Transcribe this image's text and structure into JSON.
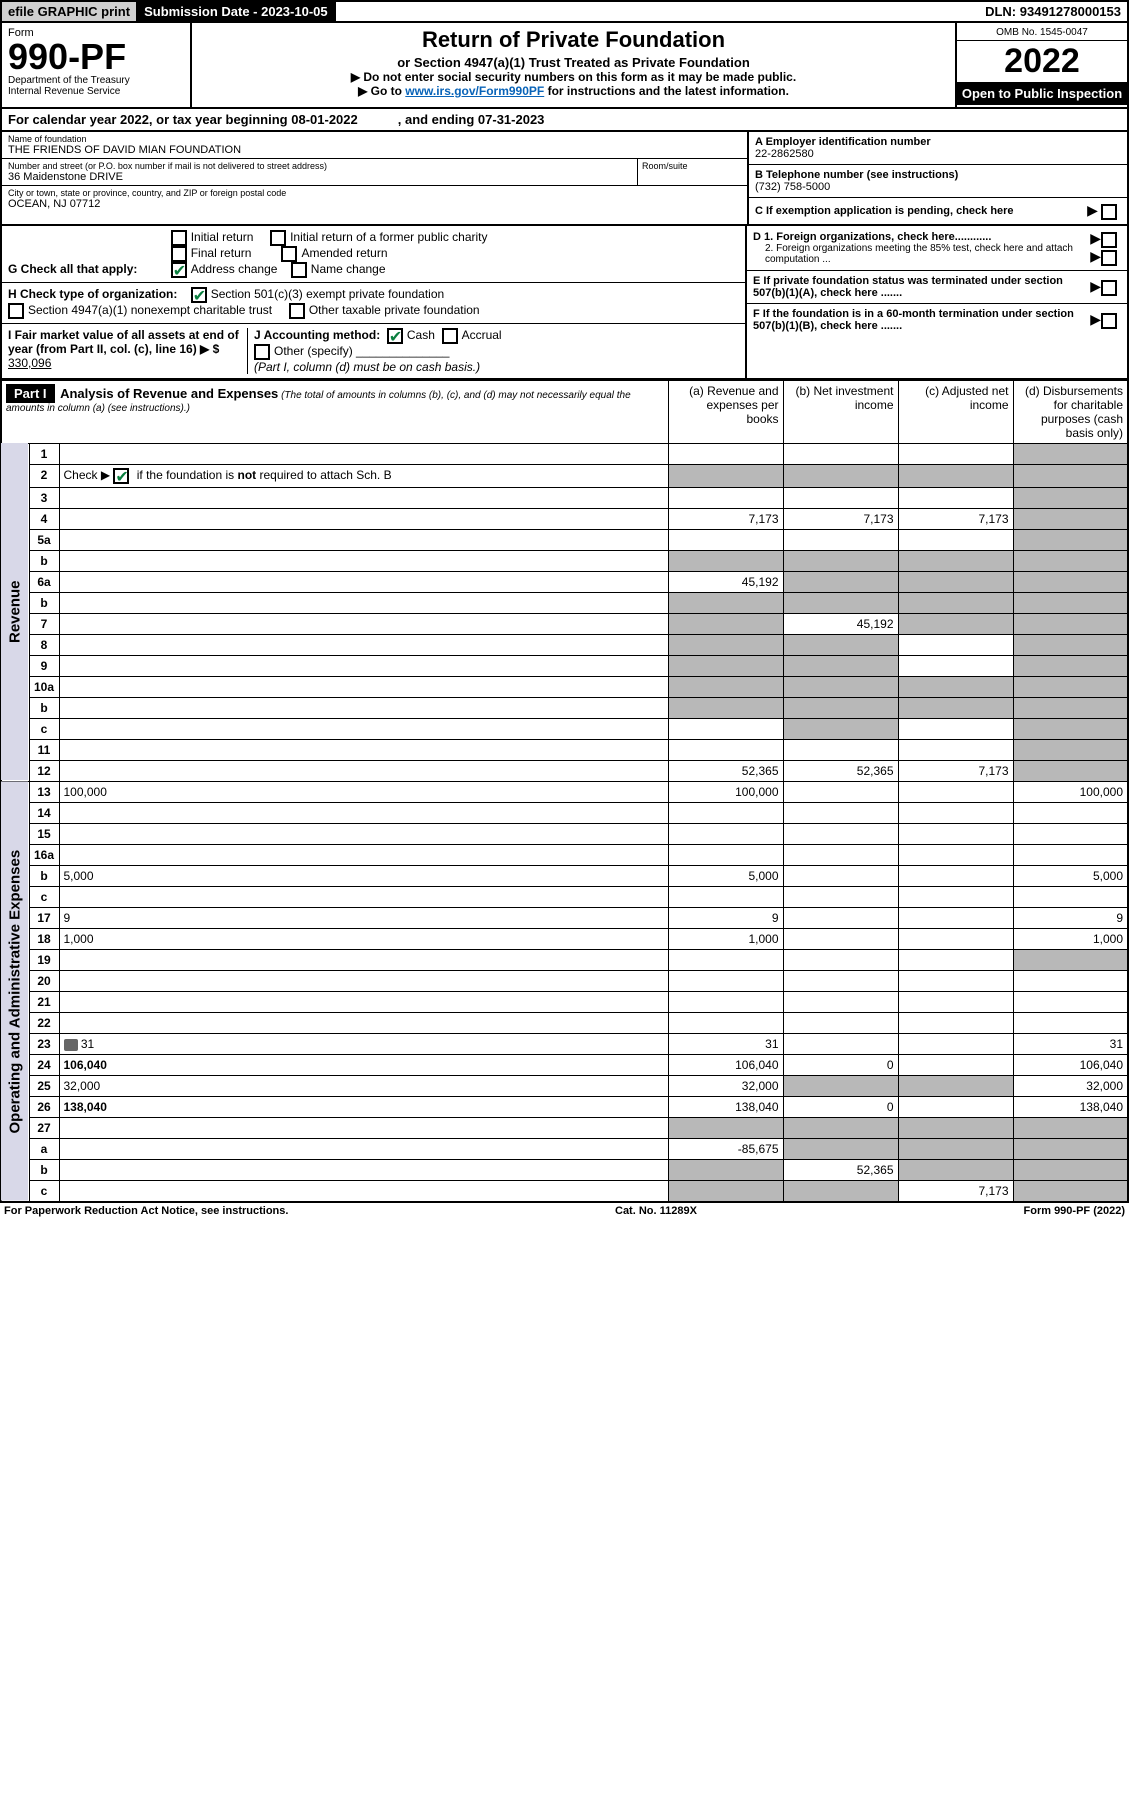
{
  "topbar": {
    "efile": "efile GRAPHIC print",
    "submission_label": "Submission Date - ",
    "submission_date": "2023-10-05",
    "dln_label": "DLN: ",
    "dln": "93491278000153"
  },
  "header": {
    "form_word": "Form",
    "form_num": "990-PF",
    "dept1": "Department of the Treasury",
    "dept2": "Internal Revenue Service",
    "title": "Return of Private Foundation",
    "subtitle1": "or Section 4947(a)(1) Trust Treated as Private Foundation",
    "subtitle2": "▶ Do not enter social security numbers on this form as it may be made public.",
    "subtitle3_pre": "▶ Go to ",
    "subtitle3_link": "www.irs.gov/Form990PF",
    "subtitle3_post": " for instructions and the latest information.",
    "omb": "OMB No. 1545-0047",
    "year": "2022",
    "open": "Open to Public Inspection"
  },
  "yearline": {
    "text1": "For calendar year 2022, or tax year beginning ",
    "begin": "08-01-2022",
    "text2": ", and ending ",
    "end": "07-31-2023"
  },
  "entity": {
    "name_label": "Name of foundation",
    "name": "THE FRIENDS OF DAVID MIAN FOUNDATION",
    "addr_label": "Number and street (or P.O. box number if mail is not delivered to street address)",
    "addr": "36 Maidenstone DRIVE",
    "room_label": "Room/suite",
    "room": "",
    "city_label": "City or town, state or province, country, and ZIP or foreign postal code",
    "city": "OCEAN, NJ  07712",
    "ein_label": "A Employer identification number",
    "ein": "22-2862580",
    "phone_label": "B Telephone number (see instructions)",
    "phone": "(732) 758-5000",
    "c_label": "C If exemption application is pending, check here"
  },
  "checks": {
    "g_label": "G Check all that apply:",
    "g_opts": [
      "Initial return",
      "Initial return of a former public charity",
      "Final return",
      "Amended return",
      "Address change",
      "Name change"
    ],
    "h_label": "H Check type of organization:",
    "h_opt1": "Section 501(c)(3) exempt private foundation",
    "h_opt2": "Section 4947(a)(1) nonexempt charitable trust",
    "h_opt3": "Other taxable private foundation",
    "i_label": "I Fair market value of all assets at end of year (from Part II, col. (c), line 16) ▶ $",
    "i_val": "330,096",
    "j_label": "J Accounting method:",
    "j_cash": "Cash",
    "j_accrual": "Accrual",
    "j_other": "Other (specify)",
    "j_note": "(Part I, column (d) must be on cash basis.)",
    "d1": "D 1. Foreign organizations, check here............",
    "d2": "2. Foreign organizations meeting the 85% test, check here and attach computation ...",
    "e": "E  If private foundation status was terminated under section 507(b)(1)(A), check here .......",
    "f": "F  If the foundation is in a 60-month termination under section 507(b)(1)(B), check here ......."
  },
  "part1": {
    "label": "Part I",
    "title": "Analysis of Revenue and Expenses",
    "note": "(The total of amounts in columns (b), (c), and (d) may not necessarily equal the amounts in column (a) (see instructions).)",
    "cols": {
      "a": "(a) Revenue and expenses per books",
      "b": "(b) Net investment income",
      "c": "(c) Adjusted net income",
      "d": "(d) Disbursements for charitable purposes (cash basis only)"
    }
  },
  "section_labels": {
    "revenue": "Revenue",
    "opexp": "Operating and Administrative Expenses"
  },
  "rows": [
    {
      "n": "1",
      "d": "",
      "a": "",
      "b": "",
      "c": "",
      "shade": [
        "d"
      ]
    },
    {
      "n": "2",
      "d": "",
      "a": "",
      "b": "",
      "c": "",
      "shade": [
        "a",
        "b",
        "c",
        "d"
      ],
      "check": true
    },
    {
      "n": "3",
      "d": "",
      "a": "",
      "b": "",
      "c": "",
      "shade": [
        "d"
      ]
    },
    {
      "n": "4",
      "d": "",
      "a": "7,173",
      "b": "7,173",
      "c": "7,173",
      "shade": [
        "d"
      ]
    },
    {
      "n": "5a",
      "d": "",
      "a": "",
      "b": "",
      "c": "",
      "shade": [
        "d"
      ]
    },
    {
      "n": "b",
      "d": "",
      "a": "",
      "b": "",
      "c": "",
      "shade": [
        "a",
        "b",
        "c",
        "d"
      ]
    },
    {
      "n": "6a",
      "d": "",
      "a": "45,192",
      "b": "",
      "c": "",
      "shade": [
        "b",
        "c",
        "d"
      ]
    },
    {
      "n": "b",
      "d": "",
      "a": "",
      "b": "",
      "c": "",
      "shade": [
        "a",
        "b",
        "c",
        "d"
      ]
    },
    {
      "n": "7",
      "d": "",
      "a": "",
      "b": "45,192",
      "c": "",
      "shade": [
        "a",
        "c",
        "d"
      ]
    },
    {
      "n": "8",
      "d": "",
      "a": "",
      "b": "",
      "c": "",
      "shade": [
        "a",
        "b",
        "d"
      ]
    },
    {
      "n": "9",
      "d": "",
      "a": "",
      "b": "",
      "c": "",
      "shade": [
        "a",
        "b",
        "d"
      ]
    },
    {
      "n": "10a",
      "d": "",
      "a": "",
      "b": "",
      "c": "",
      "shade": [
        "a",
        "b",
        "c",
        "d"
      ]
    },
    {
      "n": "b",
      "d": "",
      "a": "",
      "b": "",
      "c": "",
      "shade": [
        "a",
        "b",
        "c",
        "d"
      ]
    },
    {
      "n": "c",
      "d": "",
      "a": "",
      "b": "",
      "c": "",
      "shade": [
        "b",
        "d"
      ]
    },
    {
      "n": "11",
      "d": "",
      "a": "",
      "b": "",
      "c": "",
      "shade": [
        "d"
      ]
    },
    {
      "n": "12",
      "d": "",
      "a": "52,365",
      "b": "52,365",
      "c": "7,173",
      "shade": [
        "d"
      ],
      "bold": true
    }
  ],
  "exprows": [
    {
      "n": "13",
      "d": "100,000",
      "a": "100,000",
      "b": "",
      "c": ""
    },
    {
      "n": "14",
      "d": "",
      "a": "",
      "b": "",
      "c": ""
    },
    {
      "n": "15",
      "d": "",
      "a": "",
      "b": "",
      "c": ""
    },
    {
      "n": "16a",
      "d": "",
      "a": "",
      "b": "",
      "c": ""
    },
    {
      "n": "b",
      "d": "5,000",
      "a": "5,000",
      "b": "",
      "c": ""
    },
    {
      "n": "c",
      "d": "",
      "a": "",
      "b": "",
      "c": ""
    },
    {
      "n": "17",
      "d": "9",
      "a": "9",
      "b": "",
      "c": ""
    },
    {
      "n": "18",
      "d": "1,000",
      "a": "1,000",
      "b": "",
      "c": ""
    },
    {
      "n": "19",
      "d": "",
      "a": "",
      "b": "",
      "c": "",
      "shade": [
        "d"
      ]
    },
    {
      "n": "20",
      "d": "",
      "a": "",
      "b": "",
      "c": ""
    },
    {
      "n": "21",
      "d": "",
      "a": "",
      "b": "",
      "c": ""
    },
    {
      "n": "22",
      "d": "",
      "a": "",
      "b": "",
      "c": ""
    },
    {
      "n": "23",
      "d": "31",
      "a": "31",
      "b": "",
      "c": "",
      "icon": true
    },
    {
      "n": "24",
      "d": "106,040",
      "a": "106,040",
      "b": "0",
      "c": "",
      "bold": true
    },
    {
      "n": "25",
      "d": "32,000",
      "a": "32,000",
      "b": "",
      "c": "",
      "shade": [
        "b",
        "c"
      ]
    },
    {
      "n": "26",
      "d": "138,040",
      "a": "138,040",
      "b": "0",
      "c": "",
      "bold": true
    },
    {
      "n": "27",
      "d": "",
      "a": "",
      "b": "",
      "c": "",
      "shade": [
        "a",
        "b",
        "c",
        "d"
      ]
    },
    {
      "n": "a",
      "d": "",
      "a": "-85,675",
      "b": "",
      "c": "",
      "shade": [
        "b",
        "c",
        "d"
      ],
      "bold": true
    },
    {
      "n": "b",
      "d": "",
      "a": "",
      "b": "52,365",
      "c": "",
      "shade": [
        "a",
        "c",
        "d"
      ],
      "bold": true
    },
    {
      "n": "c",
      "d": "",
      "a": "",
      "b": "",
      "c": "7,173",
      "shade": [
        "a",
        "b",
        "d"
      ],
      "bold": true
    }
  ],
  "footer": {
    "left": "For Paperwork Reduction Act Notice, see instructions.",
    "mid": "Cat. No. 11289X",
    "right": "Form 990-PF (2022)"
  },
  "colors": {
    "link": "#0863b8",
    "check": "#0a7f3f",
    "shade": "#b8b8b8",
    "vlabel_bg": "#d8d8e8"
  }
}
